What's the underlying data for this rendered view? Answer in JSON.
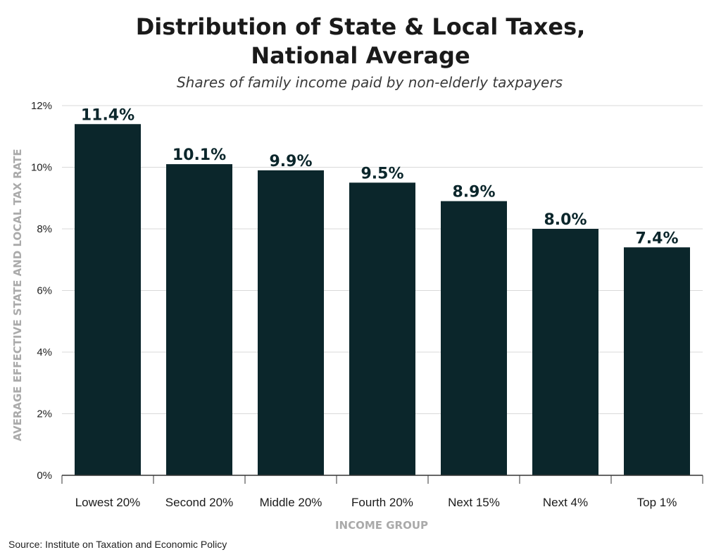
{
  "title": "Distribution of State & Local Taxes,\nNational Average",
  "subtitle": "Shares of family income paid by non-elderly taxpayers",
  "source": "Source: Institute on Taxation and Economic Policy",
  "colors": {
    "bar": "#0b262b",
    "grid": "#d9d9d9",
    "axis": "#333333",
    "axis_title": "#aaaaaa",
    "data_label": "#0b262b"
  },
  "chart_data": {
    "type": "bar",
    "title": "Distribution of State & Local Taxes, National Average",
    "subtitle": "Shares of family income paid by non-elderly taxpayers",
    "xlabel": "INCOME GROUP",
    "ylabel": "AVERAGE EFFECTIVE STATE AND LOCAL TAX RATE",
    "categories": [
      "Lowest 20%",
      "Second 20%",
      "Middle 20%",
      "Fourth 20%",
      "Next 15%",
      "Next 4%",
      "Top 1%"
    ],
    "values": [
      11.4,
      10.1,
      9.9,
      9.5,
      8.9,
      8.0,
      7.4
    ],
    "value_labels": [
      "11.4%",
      "10.1%",
      "9.9%",
      "9.5%",
      "8.9%",
      "8.0%",
      "7.4%"
    ],
    "ylim": [
      0,
      12
    ],
    "yticks": [
      0,
      2,
      4,
      6,
      8,
      10,
      12
    ],
    "ytick_labels": [
      "0%",
      "2%",
      "4%",
      "6%",
      "8%",
      "10%",
      "12%"
    ],
    "grid": true,
    "legend": "none"
  }
}
